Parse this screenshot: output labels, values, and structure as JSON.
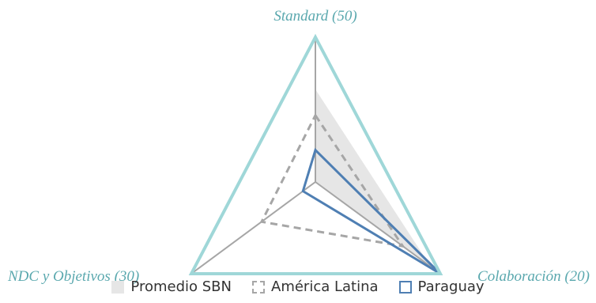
{
  "chart_data": {
    "type": "radar",
    "axes": [
      {
        "label": "Standard (50)",
        "max": 50
      },
      {
        "label": "Colaboración (20)",
        "max": 20
      },
      {
        "label": "NDC  y Objetivos (30)",
        "max": 30
      }
    ],
    "series": [
      {
        "name": "Promedio SBN",
        "style": "filled",
        "color": "#e6e6e6",
        "values": [
          32.0,
          18.5,
          0.0
        ]
      },
      {
        "name": "América Latina",
        "style": "dashed",
        "color": "#a6a6a6",
        "values": [
          23.0,
          14.0,
          13.0
        ]
      },
      {
        "name": "Paraguay",
        "style": "solid",
        "color": "#4f7fb3",
        "values": [
          11.0,
          20.0,
          3.0
        ]
      }
    ],
    "colors": {
      "outline": "#9fd7d8",
      "spokes": "#a6a6a6",
      "label": "#5aa8ae"
    }
  }
}
